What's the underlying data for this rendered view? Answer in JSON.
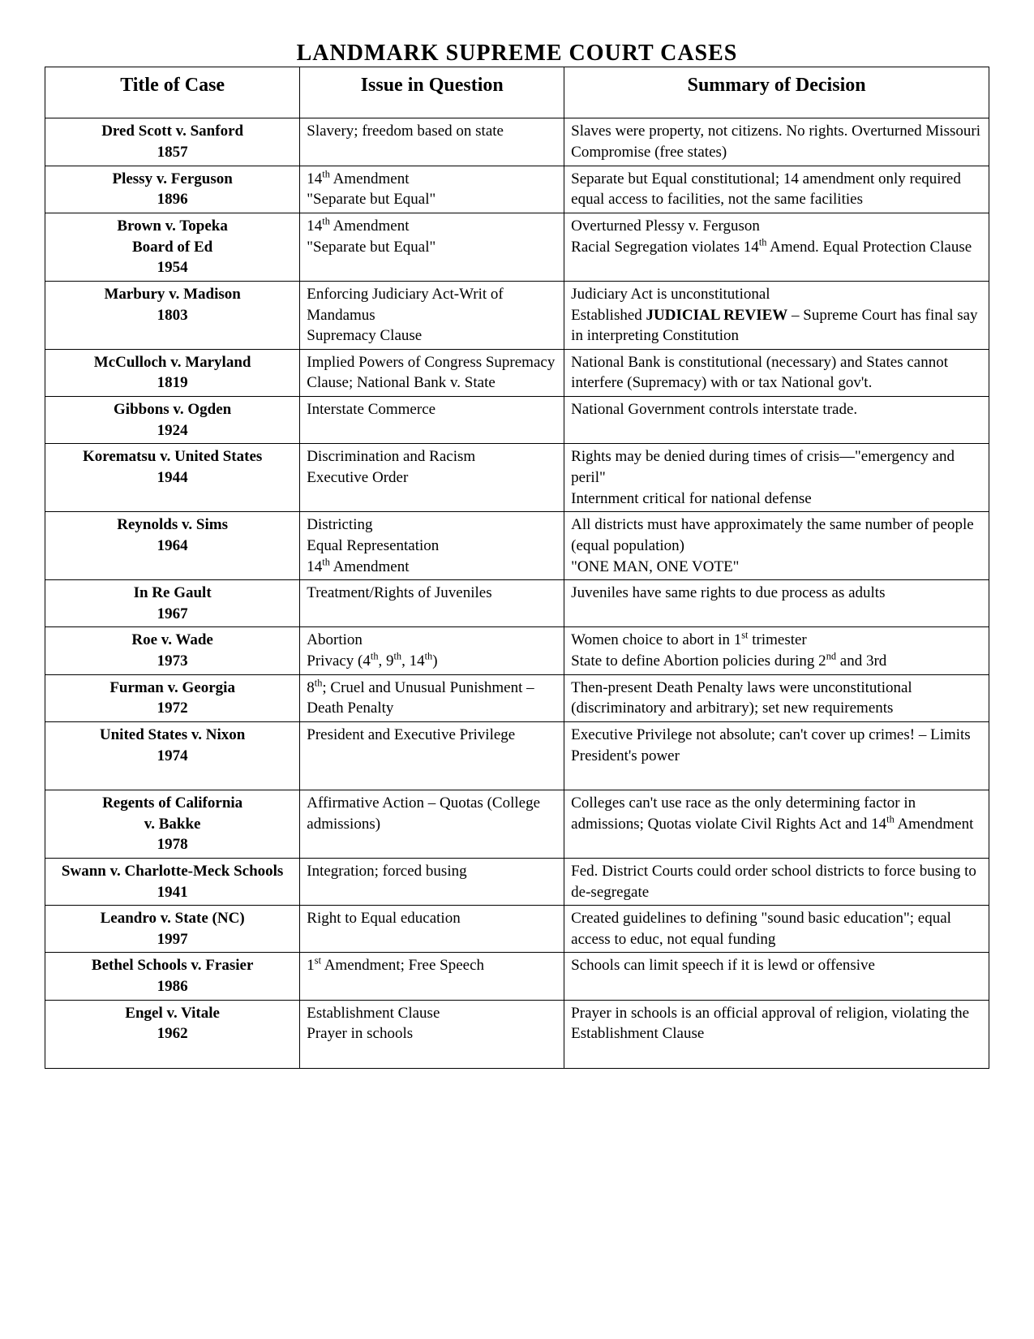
{
  "page_title": "LANDMARK SUPREME COURT CASES",
  "columns": [
    "Title of Case",
    "Issue in Question",
    "Summary of Decision"
  ],
  "rows": [
    {
      "title_html": "Dred Scott v. Sanford",
      "year": "1857",
      "issue_html": "Slavery; freedom based on state",
      "summary_html": "Slaves were property, not citizens.  No rights. Overturned Missouri Compromise (free states)"
    },
    {
      "title_html": "Plessy v. Ferguson",
      "year": "1896",
      "issue_html": "14<sup>th</sup> Amendment<br>\"Separate but Equal\"",
      "summary_html": "Separate but Equal constitutional; 14 amendment only required equal access to facilities, not the same facilities"
    },
    {
      "title_html": "Brown v. Topeka<br>Board of Ed",
      "year": "1954",
      "issue_html": "14<sup>th</sup> Amendment<br>\"Separate but Equal\"",
      "summary_html": "Overturned Plessy v. Ferguson<br>Racial Segregation violates 14<sup>th</sup> Amend. Equal Protection Clause"
    },
    {
      "title_html": "Marbury v. Madison",
      "year": "1803",
      "issue_html": "Enforcing Judiciary Act-Writ of Mandamus<br>Supremacy Clause",
      "summary_html": "Judiciary Act is unconstitutional<br>Established <b>JUDICIAL REVIEW</b> – Supreme Court has final say in interpreting Constitution"
    },
    {
      "title_html": "McCulloch v. Maryland",
      "year": "1819",
      "issue_html": "Implied Powers of Congress Supremacy Clause; National Bank v. State",
      "summary_html": "National Bank is constitutional (necessary) and States cannot interfere (Supremacy) with or tax National gov't."
    },
    {
      "title_html": "Gibbons v. Ogden",
      "year": "1924",
      "issue_html": "Interstate Commerce",
      "summary_html": "National Government controls interstate trade.",
      "pad": true
    },
    {
      "title_html": "Korematsu v. United States",
      "year": "1944",
      "issue_html": "Discrimination and Racism<br>Executive Order",
      "summary_html": "Rights may be denied during times of crisis—\"emergency and peril\"<br>Internment critical for national defense"
    },
    {
      "title_html": "Reynolds v. Sims",
      "year": "1964",
      "issue_html": "Districting<br>Equal Representation<br>14<sup>th</sup> Amendment",
      "summary_html": "All districts must have approximately the same number of people (equal population)<br>\"ONE MAN, ONE VOTE\""
    },
    {
      "title_html": "In Re Gault",
      "year": "1967",
      "issue_html": "Treatment/Rights of Juveniles",
      "summary_html": "Juveniles have same rights to due process as adults",
      "pad": true
    },
    {
      "title_html": "Roe v. Wade",
      "year": "1973",
      "issue_html": "Abortion<br>Privacy (4<sup>th</sup>, 9<sup>th</sup>, 14<sup>th</sup>)",
      "summary_html": "Women choice to abort in 1<sup>st</sup> trimester<br>State to define Abortion policies during 2<sup>nd</sup> and 3rd"
    },
    {
      "title_html": "Furman v. Georgia",
      "year": "1972",
      "issue_html": "8<sup>th</sup>; Cruel and Unusual Punishment – Death Penalty",
      "summary_html": "Then-present Death Penalty laws were unconstitutional (discriminatory and arbitrary); set new requirements"
    },
    {
      "title_html": "United States v. Nixon",
      "year": "1974",
      "issue_html": "President and Executive Privilege",
      "summary_html": "Executive Privilege not absolute; can't cover up crimes! – Limits President's power",
      "pad": true
    },
    {
      "title_html": "Regents of California<br>v. Bakke",
      "year": "1978",
      "issue_html": "Affirmative Action – Quotas (College admissions)",
      "summary_html": "Colleges can't use race as the only determining factor in admissions; Quotas violate Civil Rights Act and 14<sup>th</sup> Amendment"
    },
    {
      "title_html": "Swann v. Charlotte-Meck Schools",
      "year": "1941",
      "issue_html": "Integration; forced busing",
      "summary_html": "Fed. District Courts could order school districts to force busing to de-segregate"
    },
    {
      "title_html": "Leandro v. State (NC)",
      "year": "1997",
      "issue_html": "Right to Equal education",
      "summary_html": "Created guidelines to defining \"sound basic education\"; equal access to educ, not equal funding"
    },
    {
      "title_html": "Bethel Schools v. Frasier",
      "year": "1986",
      "issue_html": "1<sup>st</sup> Amendment; Free Speech",
      "summary_html": "Schools can limit speech if it is lewd or offensive",
      "pad": true
    },
    {
      "title_html": "Engel v. Vitale",
      "year": "1962",
      "issue_html": "Establishment Clause<br>Prayer in schools",
      "summary_html": "Prayer in schools is an official approval of religion, violating the Establishment Clause",
      "pad": true
    }
  ]
}
